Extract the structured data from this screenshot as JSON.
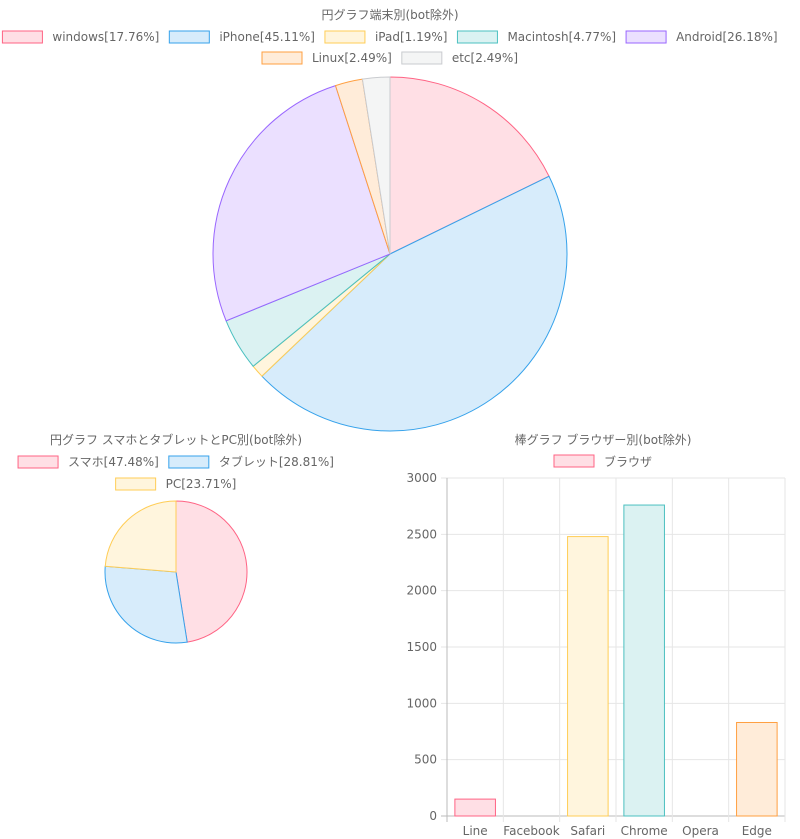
{
  "chart_data": [
    {
      "type": "pie",
      "title": "円グラフ端末別(bot除外)",
      "legend_position": "top",
      "categories": [
        "windows[17.76%]",
        "iPhone[45.11%]",
        "iPad[1.19%]",
        "Macintosh[4.77%]",
        "Android[26.18%]",
        "Linux[2.49%]",
        "etc[2.49%]"
      ],
      "values": [
        17.76,
        45.11,
        1.19,
        4.77,
        26.18,
        2.49,
        2.49
      ],
      "colors": [
        {
          "fill": "#ffdfe5",
          "stroke": "#ff6384"
        },
        {
          "fill": "#d7ecfb",
          "stroke": "#36a2eb"
        },
        {
          "fill": "#fff5dd",
          "stroke": "#ffcd56"
        },
        {
          "fill": "#dbf2f2",
          "stroke": "#4bc0c0"
        },
        {
          "fill": "#ebe0ff",
          "stroke": "#9966ff"
        },
        {
          "fill": "#ffecd9",
          "stroke": "#ff9f40"
        },
        {
          "fill": "#f4f5f5",
          "stroke": "#c9cbcf"
        }
      ]
    },
    {
      "type": "pie",
      "title": "円グラフ スマホとタブレットとPC別(bot除外)",
      "legend_position": "top",
      "categories": [
        "スマホ[47.48%]",
        "タブレット[28.81%]",
        "PC[23.71%]"
      ],
      "values": [
        47.48,
        28.81,
        23.71
      ],
      "colors": [
        {
          "fill": "#ffdfe5",
          "stroke": "#ff6384"
        },
        {
          "fill": "#d7ecfb",
          "stroke": "#36a2eb"
        },
        {
          "fill": "#fff5dd",
          "stroke": "#ffcd56"
        }
      ]
    },
    {
      "type": "bar",
      "title": "棒グラフ ブラウザー別(bot除外)",
      "legend_position": "top",
      "series": [
        {
          "name": "ブラウザ",
          "values": [
            150,
            0,
            2480,
            2760,
            0,
            830
          ]
        }
      ],
      "categories": [
        "Line",
        "Facebook",
        "Safari",
        "Chrome",
        "Opera",
        "Edge"
      ],
      "ylim": [
        0,
        3000
      ],
      "y_ticks": [
        0,
        500,
        1000,
        1500,
        2000,
        2500,
        3000
      ],
      "grid": true,
      "legend_color": {
        "fill": "#ffdfe5",
        "stroke": "#ff6384"
      },
      "colors": [
        {
          "fill": "#ffdfe5",
          "stroke": "#ff6384"
        },
        {
          "fill": "#d7ecfb",
          "stroke": "#36a2eb"
        },
        {
          "fill": "#fff5dd",
          "stroke": "#ffcd56"
        },
        {
          "fill": "#dbf2f2",
          "stroke": "#4bc0c0"
        },
        {
          "fill": "#ebe0ff",
          "stroke": "#9966ff"
        },
        {
          "fill": "#ffecd9",
          "stroke": "#ff9f40"
        }
      ]
    }
  ]
}
